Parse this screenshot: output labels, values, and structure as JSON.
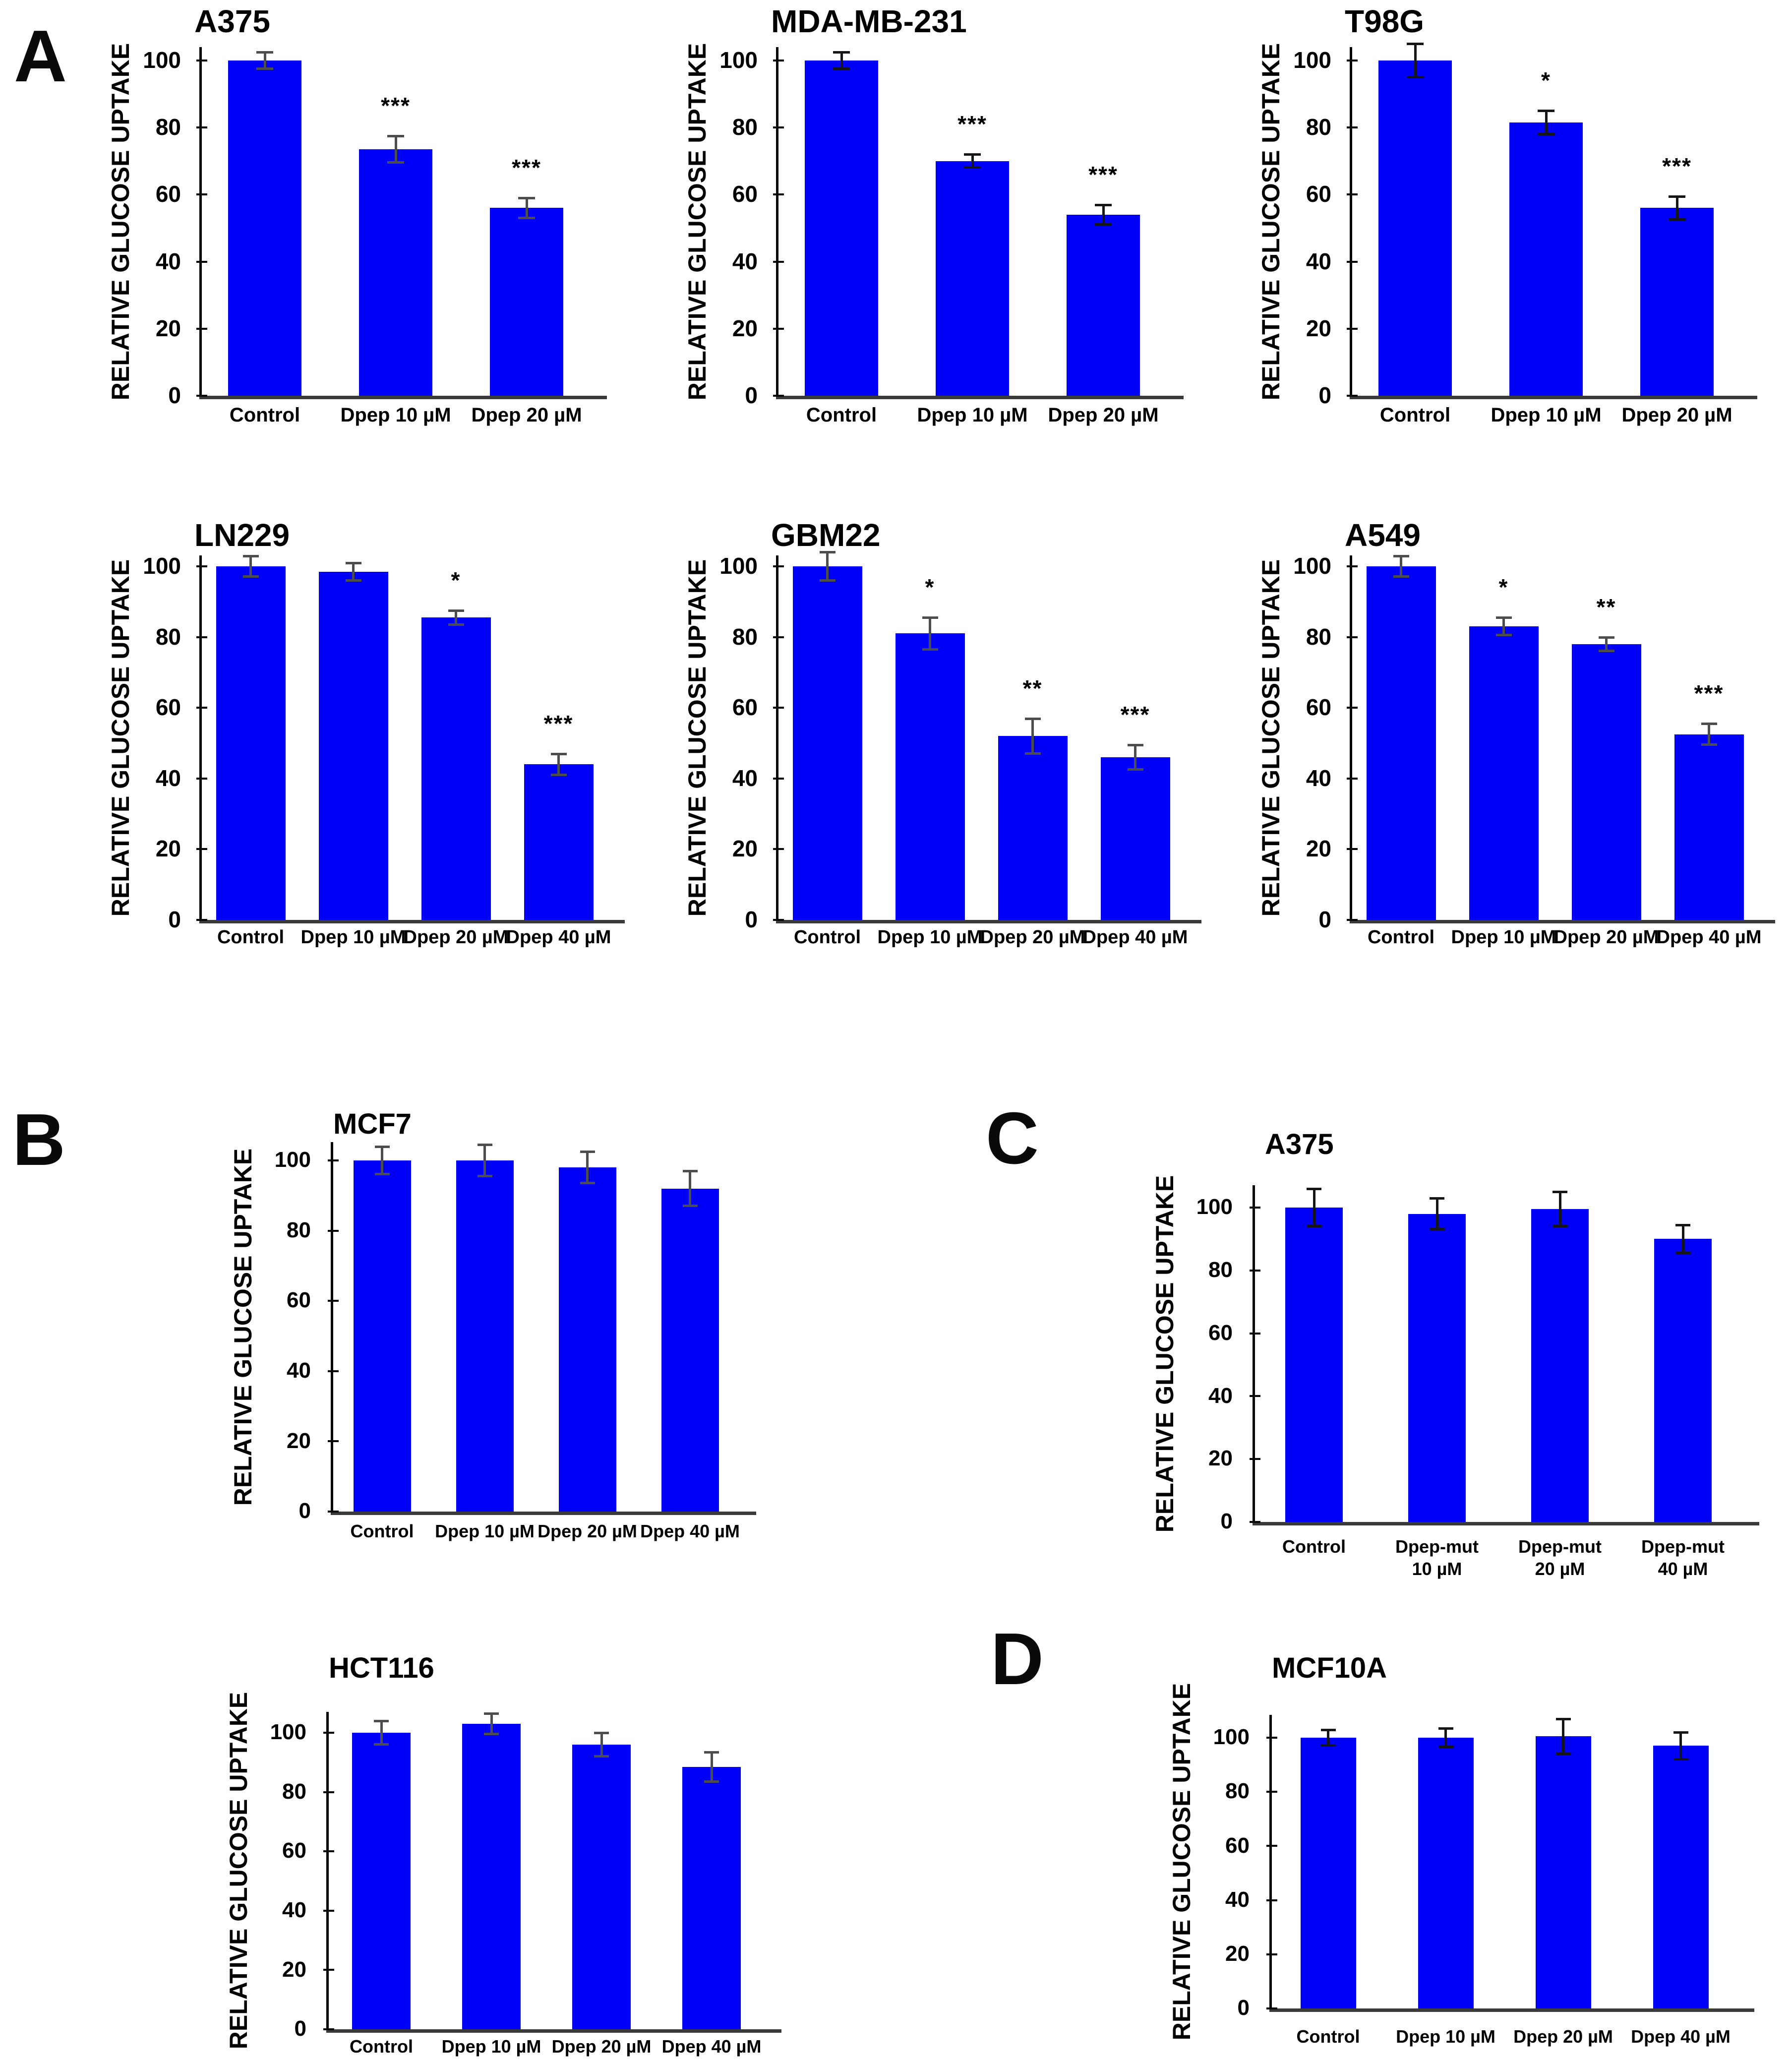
{
  "panels": {
    "A": "A",
    "B": "B",
    "C": "C",
    "D": "D"
  },
  "axis": {
    "y_label": "RELATIVE GLUCOSE UPTAKE",
    "y_ticks": [
      0,
      20,
      40,
      60,
      80,
      100
    ]
  },
  "colors": {
    "bar": "#0000F8",
    "axis": "#050505",
    "baseline": "#3a3a3a",
    "error_gray": "#4d4d4d",
    "error_black": "#161616",
    "text": "#000000"
  },
  "chart_data": [
    {
      "id": "a375",
      "panel": "A",
      "type": "bar",
      "title": "A375",
      "categories": [
        "Control",
        "Dpep 10 µM",
        "Dpep 20 µM"
      ],
      "values": [
        100,
        73.5,
        56
      ],
      "errors": [
        2.5,
        4,
        3
      ],
      "significance": [
        "",
        "***",
        "***"
      ],
      "ylabel": "RELATIVE GLUCOSE UPTAKE",
      "ylim": [
        0,
        100
      ]
    },
    {
      "id": "mda",
      "panel": "A",
      "type": "bar",
      "title": "MDA-MB-231",
      "categories": [
        "Control",
        "Dpep 10 µM",
        "Dpep 20 µM"
      ],
      "values": [
        100,
        70,
        54
      ],
      "errors": [
        2.5,
        2,
        3
      ],
      "significance": [
        "",
        "***",
        "***"
      ],
      "ylabel": "RELATIVE GLUCOSE UPTAKE",
      "ylim": [
        0,
        100
      ]
    },
    {
      "id": "t98g",
      "panel": "A",
      "type": "bar",
      "title": "T98G",
      "categories": [
        "Control",
        "Dpep 10 µM",
        "Dpep 20 µM"
      ],
      "values": [
        100,
        81.5,
        56
      ],
      "errors": [
        5,
        3.5,
        3.5
      ],
      "significance": [
        "",
        "*",
        "***"
      ],
      "ylabel": "RELATIVE GLUCOSE UPTAKE",
      "ylim": [
        0,
        100
      ]
    },
    {
      "id": "ln229",
      "panel": "A",
      "type": "bar",
      "title": "LN229",
      "categories": [
        "Control",
        "Dpep 10 µM",
        "Dpep 20 µM",
        "Dpep 40 µM"
      ],
      "values": [
        100,
        98.5,
        85.5,
        44
      ],
      "errors": [
        3,
        2.5,
        2,
        3
      ],
      "significance": [
        "",
        "",
        "*",
        "***"
      ],
      "ylabel": "RELATIVE GLUCOSE UPTAKE",
      "ylim": [
        0,
        100
      ]
    },
    {
      "id": "gbm22",
      "panel": "A",
      "type": "bar",
      "title": "GBM22",
      "categories": [
        "Control",
        "Dpep 10 µM",
        "Dpep 20 µM",
        "Dpep 40 µM"
      ],
      "values": [
        100,
        81,
        52,
        46
      ],
      "errors": [
        4,
        4.5,
        5,
        3.5
      ],
      "significance": [
        "",
        "*",
        "**",
        "***"
      ],
      "ylabel": "RELATIVE GLUCOSE UPTAKE",
      "ylim": [
        0,
        100
      ]
    },
    {
      "id": "a549",
      "panel": "A",
      "type": "bar",
      "title": "A549",
      "categories": [
        "Control",
        "Dpep 10 µM",
        "Dpep 20 µM",
        "Dpep 40 µM"
      ],
      "values": [
        100,
        83,
        78,
        52.5
      ],
      "errors": [
        3,
        2.5,
        2,
        3
      ],
      "significance": [
        "",
        "*",
        "**",
        "***"
      ],
      "ylabel": "RELATIVE GLUCOSE UPTAKE",
      "ylim": [
        0,
        100
      ]
    },
    {
      "id": "mcf7",
      "panel": "B",
      "type": "bar",
      "title": "MCF7",
      "categories": [
        "Control",
        "Dpep 10 µM",
        "Dpep 20 µM",
        "Dpep 40 µM"
      ],
      "values": [
        100,
        100,
        98,
        92
      ],
      "errors": [
        4,
        4.5,
        4.5,
        5
      ],
      "significance": [
        "",
        "",
        "",
        ""
      ],
      "ylabel": "RELATIVE GLUCOSE UPTAKE",
      "ylim": [
        0,
        100
      ]
    },
    {
      "id": "a375mut",
      "panel": "C",
      "type": "bar",
      "title": "A375",
      "categories": [
        "Control",
        "Dpep-mut\n10 µM",
        "Dpep-mut\n20 µM",
        "Dpep-mut\n40 µM"
      ],
      "values": [
        100,
        98,
        99.5,
        90
      ],
      "errors": [
        6,
        5,
        5.5,
        4.5
      ],
      "significance": [
        "",
        "",
        "",
        ""
      ],
      "ylabel": "RELATIVE GLUCOSE UPTAKE",
      "ylim": [
        0,
        100
      ]
    },
    {
      "id": "hct116",
      "panel": "B",
      "type": "bar",
      "title": "HCT116",
      "categories": [
        "Control",
        "Dpep 10 µM",
        "Dpep 20 µM",
        "Dpep 40 µM"
      ],
      "values": [
        100,
        103,
        96,
        88.5
      ],
      "errors": [
        4,
        3.5,
        4,
        5
      ],
      "significance": [
        "",
        "",
        "",
        ""
      ],
      "ylabel": "RELATIVE GLUCOSE UPTAKE",
      "ylim": [
        0,
        100
      ]
    },
    {
      "id": "mcf10a",
      "panel": "D",
      "type": "bar",
      "title": "MCF10A",
      "categories": [
        "Control",
        "Dpep 10 µM",
        "Dpep 20 µM",
        "Dpep 40 µM"
      ],
      "values": [
        100,
        100,
        100.5,
        97
      ],
      "errors": [
        3,
        3.5,
        6.5,
        5
      ],
      "significance": [
        "",
        "",
        "",
        ""
      ],
      "ylabel": "RELATIVE GLUCOSE UPTAKE",
      "ylim": [
        0,
        100
      ]
    }
  ]
}
